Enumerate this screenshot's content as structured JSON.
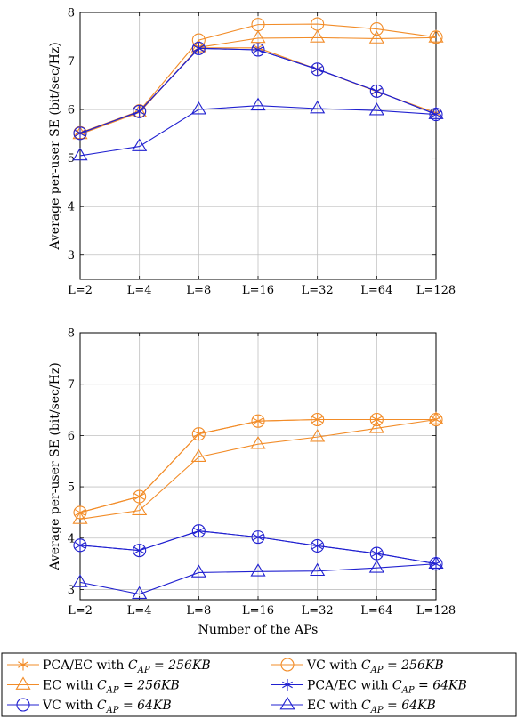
{
  "colors": {
    "orange": "#f28c28",
    "blue": "#2020d0",
    "grid": "#c0c0c0"
  },
  "chart_data": [
    {
      "type": "line",
      "categories": [
        "L=2",
        "L=4",
        "L=8",
        "L=16",
        "L=32",
        "L=64",
        "L=128"
      ],
      "ylabel": "Average per-user SE (bit/sec/Hz)",
      "xlabel": "",
      "ylim": [
        2.5,
        8
      ],
      "yticks": [
        3,
        4,
        5,
        6,
        7,
        8
      ],
      "grid": true,
      "series": [
        {
          "name": "PCA/EC with C_AP = 256KB",
          "color": "orange",
          "marker": "star",
          "values": [
            5.52,
            5.96,
            7.27,
            7.27,
            6.83,
            6.37,
            5.93
          ]
        },
        {
          "name": "VC with C_AP = 256KB",
          "color": "orange",
          "marker": "circle",
          "values": [
            5.52,
            5.97,
            7.43,
            7.75,
            7.76,
            7.66,
            7.49
          ]
        },
        {
          "name": "EC with C_AP = 256KB",
          "color": "orange",
          "marker": "triangle",
          "values": [
            5.49,
            5.94,
            7.28,
            7.47,
            7.48,
            7.46,
            7.48
          ]
        },
        {
          "name": "PCA/EC with C_AP = 64KB",
          "color": "blue",
          "marker": "star",
          "values": [
            5.51,
            5.96,
            7.26,
            7.23,
            6.83,
            6.38,
            5.9
          ]
        },
        {
          "name": "VC with C_AP = 64KB",
          "color": "blue",
          "marker": "circle",
          "values": [
            5.51,
            5.96,
            7.26,
            7.23,
            6.83,
            6.38,
            5.9
          ]
        },
        {
          "name": "EC with C_AP = 64KB",
          "color": "blue",
          "marker": "triangle",
          "values": [
            5.05,
            5.24,
            6.0,
            6.08,
            6.02,
            5.98,
            5.9
          ]
        }
      ]
    },
    {
      "type": "line",
      "categories": [
        "L=2",
        "L=4",
        "L=8",
        "L=16",
        "L=32",
        "L=64",
        "L=128"
      ],
      "ylabel": "Average per-user SE (bit/sec/Hz)",
      "xlabel": "Number of the APs",
      "ylim": [
        2.8,
        8
      ],
      "yticks": [
        3,
        4,
        5,
        6,
        7,
        8
      ],
      "grid": true,
      "series": [
        {
          "name": "PCA/EC with C_AP = 256KB",
          "color": "orange",
          "marker": "star",
          "values": [
            4.5,
            4.81,
            6.03,
            6.28,
            6.31,
            6.31,
            6.31
          ]
        },
        {
          "name": "VC with C_AP = 256KB",
          "color": "orange",
          "marker": "circle",
          "values": [
            4.5,
            4.81,
            6.03,
            6.28,
            6.31,
            6.31,
            6.31
          ]
        },
        {
          "name": "EC with C_AP = 256KB",
          "color": "orange",
          "marker": "triangle",
          "values": [
            4.37,
            4.54,
            5.58,
            5.83,
            5.97,
            6.14,
            6.31
          ]
        },
        {
          "name": "PCA/EC with C_AP = 64KB",
          "color": "blue",
          "marker": "star",
          "values": [
            3.86,
            3.76,
            4.14,
            4.02,
            3.85,
            3.7,
            3.5
          ]
        },
        {
          "name": "VC with C_AP = 64KB",
          "color": "blue",
          "marker": "circle",
          "values": [
            3.86,
            3.76,
            4.14,
            4.02,
            3.85,
            3.7,
            3.5
          ]
        },
        {
          "name": "EC with C_AP = 64KB",
          "color": "blue",
          "marker": "triangle",
          "values": [
            3.14,
            2.91,
            3.33,
            3.35,
            3.36,
            3.42,
            3.5
          ]
        }
      ]
    }
  ],
  "legend": {
    "placement": "bottom",
    "items": [
      {
        "prefix": "PCA/EC with ",
        "math": "C_AP = 256KB",
        "color": "orange",
        "marker": "star"
      },
      {
        "prefix": "VC with ",
        "math": "C_AP = 256KB",
        "color": "orange",
        "marker": "circle"
      },
      {
        "prefix": "EC with ",
        "math": "C_AP = 256KB",
        "color": "orange",
        "marker": "triangle"
      },
      {
        "prefix": "PCA/EC with ",
        "math": "C_AP = 64KB",
        "color": "blue",
        "marker": "star"
      },
      {
        "prefix": "VC with ",
        "math": "C_AP = 64KB",
        "color": "blue",
        "marker": "circle"
      },
      {
        "prefix": "EC with ",
        "math": "C_AP = 64KB",
        "color": "blue",
        "marker": "triangle"
      }
    ]
  }
}
